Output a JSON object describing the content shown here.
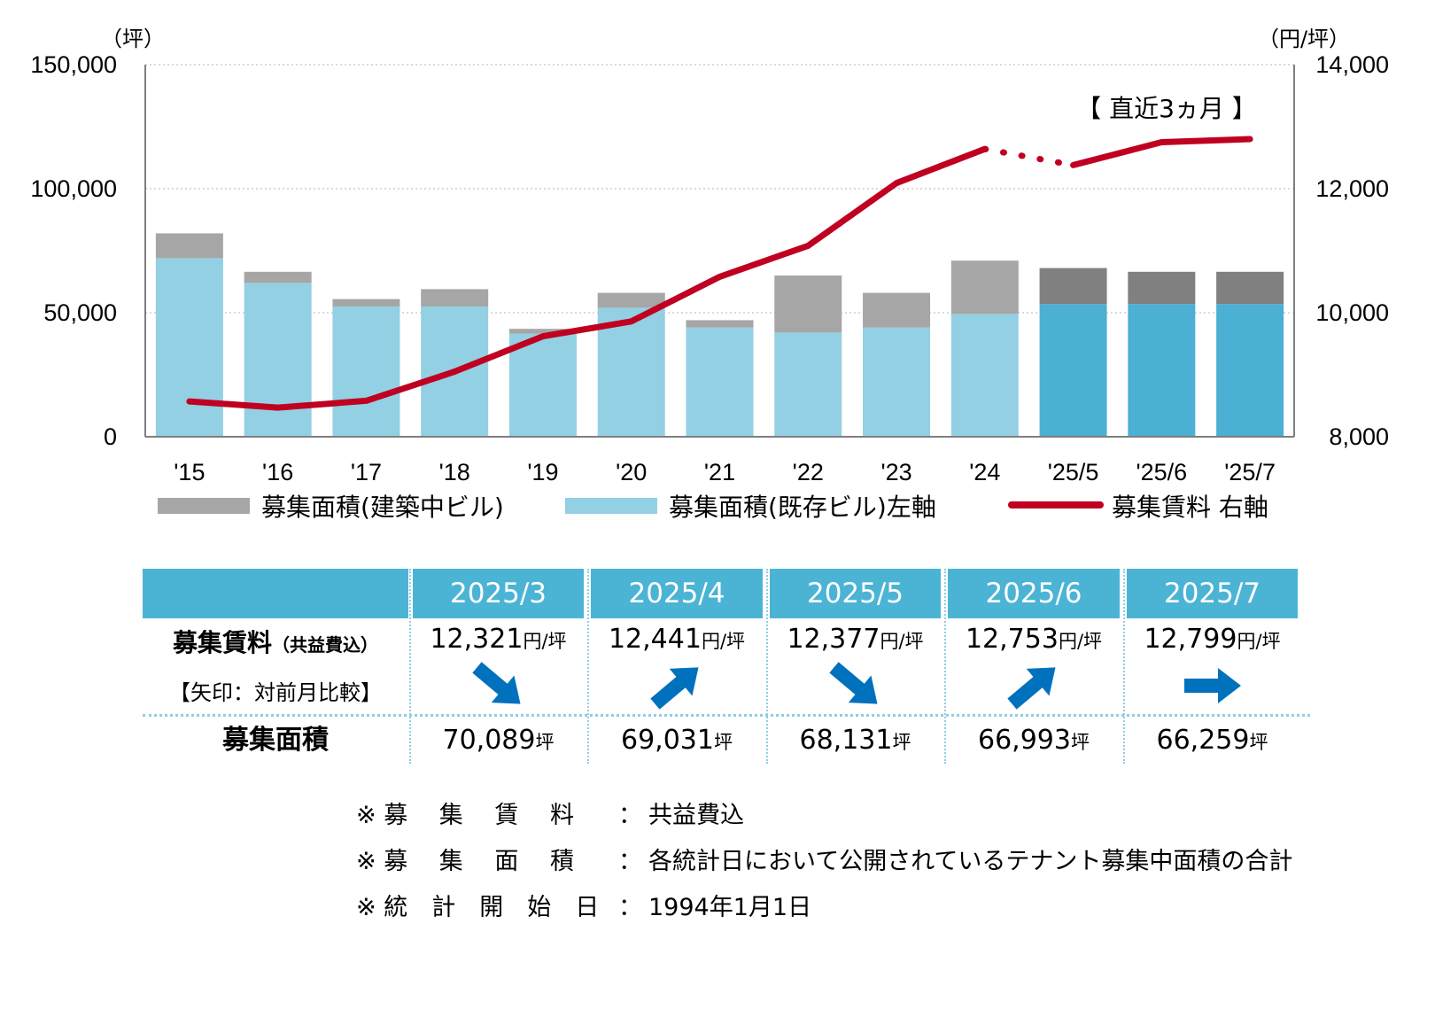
{
  "chart_data": {
    "type": "bar",
    "categories": [
      "'15",
      "'16",
      "'17",
      "'18",
      "'19",
      "'20",
      "'21",
      "'22",
      "'23",
      "'24",
      "'25/5",
      "'25/6",
      "'25/7"
    ],
    "series": [
      {
        "name": "募集面積(既存ビル)左軸",
        "axis": "left",
        "values": [
          72000,
          62000,
          52500,
          52500,
          41500,
          52000,
          44000,
          42000,
          44000,
          49500,
          53500,
          53500,
          53500
        ]
      },
      {
        "name": "募集面積(建築中ビル)",
        "axis": "left",
        "values": [
          10000,
          4500,
          3000,
          7000,
          2000,
          6000,
          3000,
          23000,
          14000,
          21500,
          14500,
          13000,
          13000
        ]
      },
      {
        "name": "募集賃料 右軸",
        "axis": "right",
        "type": "line",
        "values": [
          8570,
          8470,
          8580,
          9050,
          9620,
          9860,
          10580,
          11080,
          12090,
          12640,
          12380,
          12750,
          12800
        ]
      }
    ],
    "left_axis": {
      "unit": "（坪）",
      "ylim": [
        0,
        150000
      ],
      "ticks": [
        "150,000",
        "100,000",
        "50,000",
        "0"
      ]
    },
    "right_axis": {
      "unit": "（円/坪）",
      "ylim": [
        8000,
        14000
      ],
      "ticks": [
        "14,000",
        "12,000",
        "10,000",
        "8,000"
      ]
    },
    "annotation": "【 直近3ヵ月 】",
    "recent_count": 3,
    "grid": true,
    "legend_position": "bottom"
  },
  "colors": {
    "existing": "#93d0e3",
    "existing_recent": "#4bb0d3",
    "construction": "#a6a6a6",
    "construction_recent": "#808080",
    "line": "#c00020",
    "table_header": "#4bb4d5",
    "arrow": "#0071bc"
  },
  "table": {
    "row1_label": "募集賃料",
    "row1_label_small": "（共益費込）",
    "row1_sub": "【矢印：対前月比較】",
    "row2_label": "募集面積",
    "columns": [
      {
        "month": "2025/3",
        "rent": "12,321",
        "rent_unit": "円/坪",
        "arrow": "down",
        "area": "70,089",
        "area_unit": "坪"
      },
      {
        "month": "2025/4",
        "rent": "12,441",
        "rent_unit": "円/坪",
        "arrow": "up",
        "area": "69,031",
        "area_unit": "坪"
      },
      {
        "month": "2025/5",
        "rent": "12,377",
        "rent_unit": "円/坪",
        "arrow": "down",
        "area": "68,131",
        "area_unit": "坪"
      },
      {
        "month": "2025/6",
        "rent": "12,753",
        "rent_unit": "円/坪",
        "arrow": "up",
        "area": "66,993",
        "area_unit": "坪"
      },
      {
        "month": "2025/7",
        "rent": "12,799",
        "rent_unit": "円/坪",
        "arrow": "flat",
        "area": "66,259",
        "area_unit": "坪"
      }
    ]
  },
  "notes": [
    {
      "label": "※ 募　 集　 賃　 料",
      "colon": "：",
      "value": "共益費込"
    },
    {
      "label": "※ 募　 集　 面　 積",
      "colon": "：",
      "value": "各統計日において公開されているテナント募集中面積の合計"
    },
    {
      "label": "※ 統　計　開　始　日",
      "colon": "：",
      "value": "1994年1月1日"
    }
  ]
}
